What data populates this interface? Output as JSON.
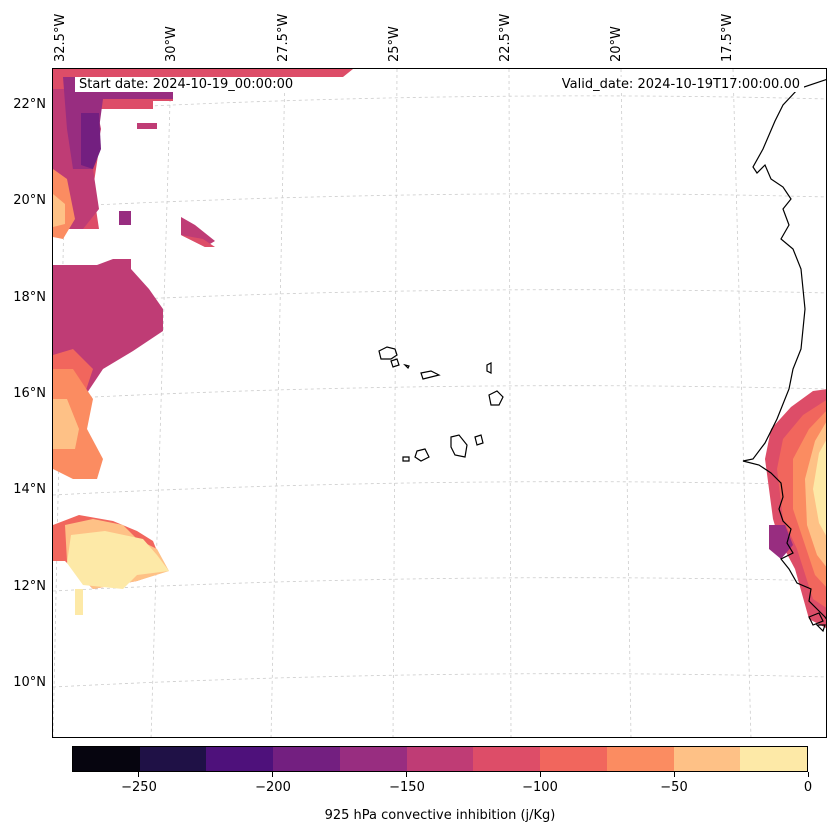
{
  "map": {
    "start_date": "Start date: 2024-10-19_00:00:00",
    "valid_date": "Valid_date: 2024-10-19T17:00:00.00",
    "lat_labels": [
      "22°N",
      "20°N",
      "18°N",
      "16°N",
      "14°N",
      "12°N",
      "10°N"
    ],
    "lon_labels": [
      "32.5°W",
      "30°W",
      "27.5°W",
      "25°W",
      "22.5°W",
      "20°W",
      "17.5°W"
    ],
    "coastline_color": "#000000",
    "gridline_color": "#cccccc"
  },
  "colorbar": {
    "label": "925 hPa convective inhibition (j/Kg)",
    "range": [
      -275,
      0
    ],
    "levels": [
      -275,
      -250,
      -225,
      -200,
      -175,
      -150,
      -125,
      -100,
      -75,
      -50,
      -25,
      0
    ],
    "tick_values": [
      -250,
      -200,
      -150,
      -100,
      -50,
      0
    ],
    "tick_labels": [
      "−250",
      "−200",
      "−150",
      "−100",
      "−50",
      "0"
    ],
    "colors": [
      "#06050f",
      "#1f1146",
      "#4e117b",
      "#731f80",
      "#982d80",
      "#bf3c75",
      "#dd4d68",
      "#f1665d",
      "#fb8c61",
      "#fec186",
      "#fde9a7"
    ]
  }
}
